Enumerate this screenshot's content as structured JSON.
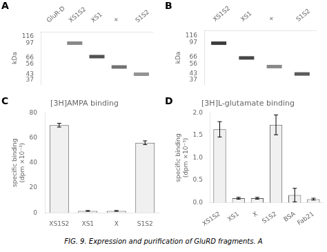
{
  "chart_data": [
    {
      "type": "scatter",
      "marker": "line",
      "annotations": [
        "A"
      ],
      "categories": [
        "GluR-D",
        "XS1S2",
        "XS1",
        "+",
        "S1S2"
      ],
      "values": [
        null,
        97,
        68,
        52,
        43
      ],
      "colors": [
        null,
        "#888888",
        "#525252",
        "#727272",
        "#939393"
      ],
      "ylabel": "kDa",
      "log": "y",
      "ylim": [
        33,
        130
      ],
      "yticks": [
        116,
        97,
        66,
        56,
        43,
        37
      ],
      "grid": false
    },
    {
      "type": "scatter",
      "marker": "line",
      "annotations": [
        "B"
      ],
      "categories": [
        "XS1S2",
        "XS1",
        "+",
        "S1S2"
      ],
      "values": [
        95,
        65,
        52,
        43
      ],
      "colors": [
        "#3c3c3c",
        "#474747",
        "#888888",
        "#5c5c5c"
      ],
      "ylabel": "kDa",
      "log": "y",
      "ylim": [
        33,
        130
      ],
      "yticks": [
        116,
        97,
        66,
        56,
        43,
        37
      ],
      "grid": false
    },
    {
      "type": "bar",
      "title": "[3H]AMPA binding",
      "annotations": [
        "C"
      ],
      "categories": [
        "XS1S2",
        "XS1",
        "X",
        "S1S2"
      ],
      "values": [
        70,
        1.5,
        1.5,
        56
      ],
      "errors": [
        1.5,
        0.3,
        0.3,
        1.5
      ],
      "color": "#f0f0f0",
      "ylabel": "specific binding\n(dpm ×10⁻³)",
      "ylim": [
        0,
        80
      ],
      "yticks": [
        0,
        20,
        40,
        60,
        80
      ],
      "grid": false
    },
    {
      "type": "bar",
      "title": "[3H]L-glutamate binding",
      "annotations": [
        "D"
      ],
      "categories": [
        "XS1S2",
        "XS1",
        "X",
        "S1S2",
        "BSA",
        "Fab21"
      ],
      "values": [
        1.63,
        0.1,
        0.1,
        1.73,
        0.17,
        0.08
      ],
      "errors": [
        0.17,
        0.02,
        0.02,
        0.22,
        0.15,
        0.02
      ],
      "color": "#f0f0f0",
      "ylabel": "specific binding\n(dpm ×10⁻³)",
      "ylim": [
        0,
        2.0
      ],
      "yticks": [
        {
          "value": 0,
          "label": "0.0"
        },
        0.5,
        {
          "value": 1,
          "label": "1.0"
        },
        1.5,
        {
          "value": 2,
          "label": "2.0"
        }
      ],
      "grid": false
    }
  ],
  "caption": "FIG. 9.  Expression and purification of GluRD fragments. A"
}
